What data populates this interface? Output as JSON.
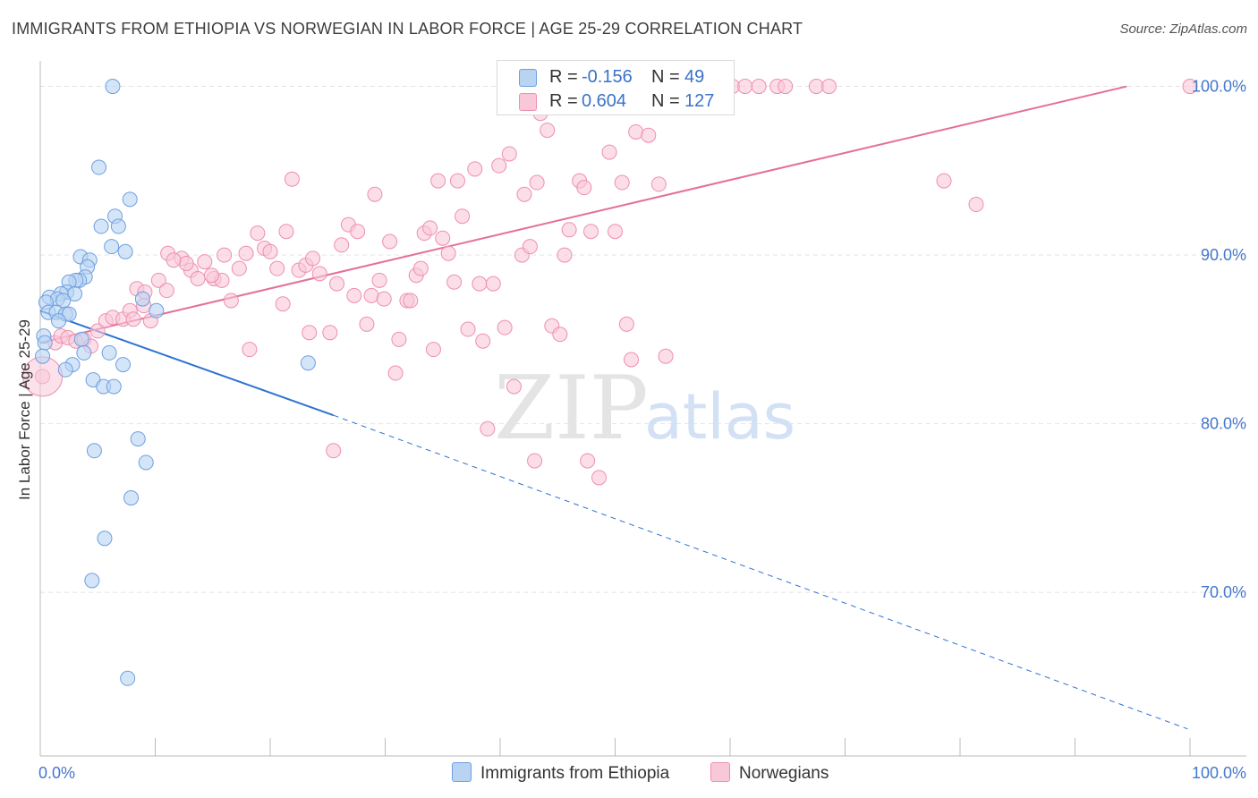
{
  "title": "IMMIGRANTS FROM ETHIOPIA VS NORWEGIAN IN LABOR FORCE | AGE 25-29 CORRELATION CHART",
  "source": "Source: ZipAtlas.com",
  "watermark": {
    "zip": "ZIP",
    "atlas": "atlas"
  },
  "colors": {
    "blue_fill": "#b9d3f3",
    "blue_stroke": "#6d9fe0",
    "blue_line": "#2f73d2",
    "pink_fill": "#f9c8d8",
    "pink_stroke": "#ee8fae",
    "pink_line": "#e56f97",
    "axis_text": "#4477cc",
    "grid": "#e4e4e4"
  },
  "legend": {
    "rows": [
      {
        "r_label": "R =",
        "r_value": "-0.156",
        "n_label": "N =",
        "n_value": "49"
      },
      {
        "r_label": "R =",
        "r_value": "0.604",
        "n_label": "N =",
        "n_value": "127"
      }
    ]
  },
  "bottom_legend": [
    {
      "label": "Immigrants from Ethiopia"
    },
    {
      "label": "Norwegians"
    }
  ],
  "chart_data": {
    "type": "scatter",
    "title": "IMMIGRANTS FROM ETHIOPIA VS NORWEGIAN IN LABOR FORCE | AGE 25-29 CORRELATION CHART",
    "xlabel": "",
    "ylabel": "In Labor Force | Age 25-29",
    "xlim": [
      0,
      100
    ],
    "ylim": [
      60.3,
      103.0
    ],
    "x_tick_labels": [
      {
        "value": 0,
        "label": "0.0%"
      },
      {
        "value": 100,
        "label": "100.0%"
      }
    ],
    "y_ticks": [
      {
        "value": 70,
        "label": "70.0%"
      },
      {
        "value": 80,
        "label": "80.0%"
      },
      {
        "value": 90,
        "label": "90.0%"
      },
      {
        "value": 100,
        "label": "100.0%"
      }
    ],
    "x_minor_ticks": [
      0,
      10,
      20,
      30,
      40,
      50,
      60,
      70,
      80,
      90,
      100
    ],
    "series": [
      {
        "name": "Immigrants from Ethiopia",
        "color": "blue",
        "trend": {
          "x0": 0,
          "y0": 86.7,
          "x1": 25.5,
          "y1": 80.5,
          "dash_to_x": 99.8,
          "dash_to_y": 61.9
        },
        "points": [
          [
            6.3,
            100
          ],
          [
            5.1,
            95.2
          ],
          [
            7.8,
            93.3
          ],
          [
            6.5,
            92.3
          ],
          [
            5.3,
            91.7
          ],
          [
            6.8,
            91.7
          ],
          [
            6.2,
            90.5
          ],
          [
            7.4,
            90.2
          ],
          [
            3.5,
            89.9
          ],
          [
            4.3,
            89.7
          ],
          [
            4.1,
            89.3
          ],
          [
            3.9,
            88.7
          ],
          [
            3.4,
            88.5
          ],
          [
            3.1,
            88.5
          ],
          [
            2.5,
            88.4
          ],
          [
            2.3,
            87.8
          ],
          [
            3.0,
            87.7
          ],
          [
            1.8,
            87.7
          ],
          [
            0.8,
            87.5
          ],
          [
            1.5,
            87.4
          ],
          [
            2.0,
            87.3
          ],
          [
            0.5,
            87.2
          ],
          [
            8.9,
            87.4
          ],
          [
            10.1,
            86.7
          ],
          [
            0.7,
            86.6
          ],
          [
            1.4,
            86.6
          ],
          [
            2.2,
            86.5
          ],
          [
            2.5,
            86.5
          ],
          [
            1.6,
            86.1
          ],
          [
            0.3,
            85.2
          ],
          [
            0.4,
            84.8
          ],
          [
            3.6,
            85.0
          ],
          [
            6.0,
            84.2
          ],
          [
            3.8,
            84.2
          ],
          [
            0.2,
            84.0
          ],
          [
            2.8,
            83.5
          ],
          [
            7.2,
            83.5
          ],
          [
            2.2,
            83.2
          ],
          [
            23.3,
            83.6
          ],
          [
            4.6,
            82.6
          ],
          [
            5.5,
            82.2
          ],
          [
            6.4,
            82.2
          ],
          [
            8.5,
            79.1
          ],
          [
            4.7,
            78.4
          ],
          [
            9.2,
            77.7
          ],
          [
            7.9,
            75.6
          ],
          [
            5.6,
            73.2
          ],
          [
            4.5,
            70.7
          ],
          [
            7.6,
            64.9
          ]
        ]
      },
      {
        "name": "Norwegians",
        "color": "pink",
        "trend": {
          "x0": 0,
          "y0": 84.8,
          "x1": 94.5,
          "y1": 100.0
        },
        "points": [
          [
            0.2,
            82.8
          ],
          [
            1.3,
            84.8
          ],
          [
            1.8,
            85.2
          ],
          [
            2.4,
            85.1
          ],
          [
            3.1,
            84.9
          ],
          [
            3.8,
            85.0
          ],
          [
            4.4,
            84.6
          ],
          [
            5.0,
            85.5
          ],
          [
            5.7,
            86.1
          ],
          [
            6.3,
            86.3
          ],
          [
            7.2,
            86.2
          ],
          [
            7.8,
            86.7
          ],
          [
            8.4,
            88.0
          ],
          [
            9.1,
            87.8
          ],
          [
            9.6,
            86.1
          ],
          [
            10.3,
            88.5
          ],
          [
            11.0,
            87.9
          ],
          [
            11.1,
            90.1
          ],
          [
            12.3,
            89.8
          ],
          [
            13.1,
            89.1
          ],
          [
            13.7,
            88.6
          ],
          [
            14.3,
            89.6
          ],
          [
            15.1,
            88.6
          ],
          [
            15.8,
            88.5
          ],
          [
            16.0,
            90.0
          ],
          [
            16.6,
            87.3
          ],
          [
            17.3,
            89.2
          ],
          [
            17.9,
            90.1
          ],
          [
            18.2,
            84.4
          ],
          [
            18.9,
            91.3
          ],
          [
            19.5,
            90.4
          ],
          [
            20.0,
            90.2
          ],
          [
            20.6,
            89.2
          ],
          [
            21.1,
            87.1
          ],
          [
            21.4,
            91.4
          ],
          [
            21.9,
            94.5
          ],
          [
            22.5,
            89.1
          ],
          [
            23.1,
            89.4
          ],
          [
            23.4,
            85.4
          ],
          [
            23.7,
            89.8
          ],
          [
            24.3,
            88.9
          ],
          [
            25.2,
            85.4
          ],
          [
            25.5,
            78.4
          ],
          [
            25.8,
            88.3
          ],
          [
            26.2,
            90.6
          ],
          [
            26.8,
            91.8
          ],
          [
            27.3,
            87.6
          ],
          [
            27.6,
            91.4
          ],
          [
            28.4,
            85.9
          ],
          [
            28.8,
            87.6
          ],
          [
            29.1,
            93.6
          ],
          [
            29.5,
            88.5
          ],
          [
            29.9,
            87.4
          ],
          [
            30.4,
            90.8
          ],
          [
            30.9,
            83.0
          ],
          [
            31.2,
            85.0
          ],
          [
            31.9,
            87.3
          ],
          [
            32.2,
            87.3
          ],
          [
            32.7,
            88.8
          ],
          [
            33.1,
            89.2
          ],
          [
            33.4,
            91.3
          ],
          [
            33.9,
            91.6
          ],
          [
            34.2,
            84.4
          ],
          [
            34.6,
            94.4
          ],
          [
            35.0,
            91.0
          ],
          [
            35.5,
            90.1
          ],
          [
            36.0,
            88.4
          ],
          [
            36.3,
            94.4
          ],
          [
            36.7,
            92.3
          ],
          [
            37.2,
            85.6
          ],
          [
            37.8,
            95.1
          ],
          [
            38.2,
            88.3
          ],
          [
            38.5,
            84.9
          ],
          [
            38.9,
            79.7
          ],
          [
            39.4,
            88.3
          ],
          [
            39.9,
            95.3
          ],
          [
            40.4,
            85.7
          ],
          [
            40.8,
            96.0
          ],
          [
            41.2,
            82.2
          ],
          [
            41.9,
            90.0
          ],
          [
            42.1,
            93.6
          ],
          [
            42.6,
            90.5
          ],
          [
            43.2,
            94.3
          ],
          [
            43.5,
            98.4
          ],
          [
            44.1,
            97.4
          ],
          [
            44.5,
            85.8
          ],
          [
            45.2,
            85.3
          ],
          [
            45.6,
            90.0
          ],
          [
            46.0,
            91.5
          ],
          [
            46.4,
            99.8
          ],
          [
            46.9,
            94.4
          ],
          [
            47.3,
            94.0
          ],
          [
            47.9,
            91.4
          ],
          [
            48.2,
            98.9
          ],
          [
            48.6,
            76.8
          ],
          [
            49.0,
            99.4
          ],
          [
            49.5,
            96.1
          ],
          [
            50.0,
            91.4
          ],
          [
            50.6,
            94.3
          ],
          [
            51.0,
            85.9
          ],
          [
            51.4,
            83.8
          ],
          [
            51.8,
            97.3
          ],
          [
            52.1,
            99.9
          ],
          [
            52.5,
            99.8
          ],
          [
            52.9,
            97.1
          ],
          [
            53.3,
            100
          ],
          [
            53.8,
            94.2
          ],
          [
            54.4,
            84.0
          ],
          [
            55.7,
            100
          ],
          [
            56.2,
            99.6
          ],
          [
            60.2,
            100
          ],
          [
            61.3,
            100
          ],
          [
            62.5,
            100
          ],
          [
            64.1,
            100
          ],
          [
            64.8,
            100
          ],
          [
            67.5,
            100
          ],
          [
            68.6,
            100
          ],
          [
            78.6,
            94.4
          ],
          [
            81.4,
            93.0
          ],
          [
            100.0,
            100
          ],
          [
            9.0,
            87.0
          ],
          [
            12.7,
            89.5
          ],
          [
            14.9,
            88.8
          ],
          [
            8.1,
            86.2
          ],
          [
            11.6,
            89.7
          ],
          [
            47.6,
            77.8
          ],
          [
            43.0,
            77.8
          ]
        ]
      }
    ]
  }
}
